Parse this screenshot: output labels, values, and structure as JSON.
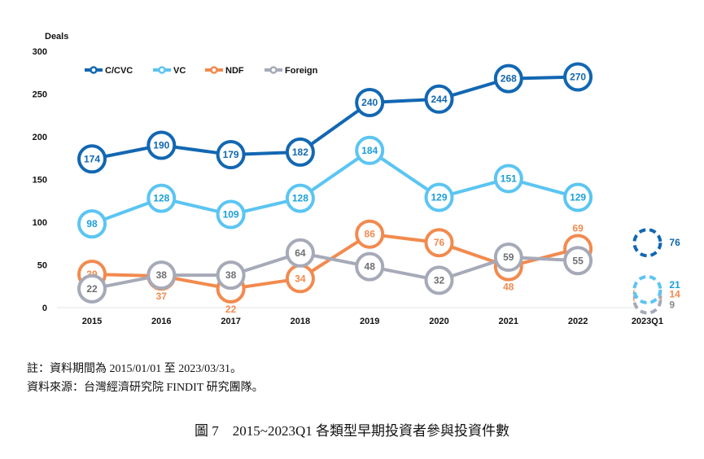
{
  "chart_data": {
    "type": "line",
    "ylabel": "Deals",
    "ylim": [
      0,
      300
    ],
    "yticks": [
      0,
      50,
      100,
      150,
      200,
      250,
      300
    ],
    "categories": [
      "2015",
      "2016",
      "2017",
      "2018",
      "2019",
      "2020",
      "2021",
      "2022",
      "2023Q1"
    ],
    "legend_position": "top-left",
    "series": [
      {
        "name": "C/CVC",
        "color": "#1267b2",
        "values": [
          174,
          190,
          179,
          182,
          240,
          244,
          268,
          270,
          76
        ]
      },
      {
        "name": "VC",
        "color": "#5bc5f2",
        "values": [
          98,
          128,
          109,
          128,
          184,
          129,
          151,
          129,
          21
        ]
      },
      {
        "name": "NDF",
        "color": "#f28a4e",
        "values": [
          39,
          37,
          22,
          34,
          86,
          76,
          48,
          69,
          14
        ]
      },
      {
        "name": "Foreign",
        "color": "#a6aab8",
        "values": [
          22,
          38,
          38,
          64,
          48,
          32,
          59,
          55,
          9
        ]
      }
    ]
  },
  "notes": {
    "line1": "註：資料期間為 2015/01/01 至 2023/03/31。",
    "line2": "資料來源：台灣經濟研究院 FINDIT 研究團隊。"
  },
  "caption": "圖 7　2015~2023Q1 各類型早期投資者參與投資件數"
}
